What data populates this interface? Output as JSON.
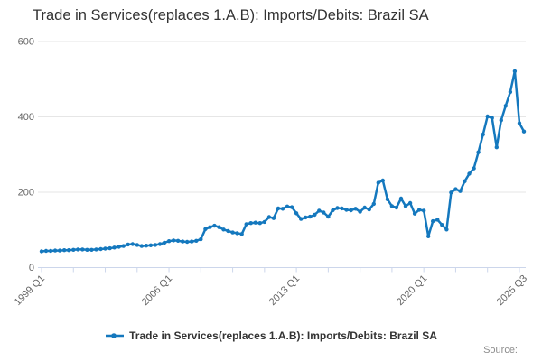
{
  "title": "Trade in Services(replaces 1.A.B): Imports/Debits: Brazil SA",
  "legend": {
    "label": "Trade in Services(replaces 1.A.B): Imports/Debits: Brazil SA"
  },
  "credits": {
    "label": "Source:"
  },
  "colors": {
    "line": "#1478be",
    "grid": "#e6e6e6",
    "axis": "#ccd6eb",
    "tick": "#ccd6eb",
    "axis_text": "#666666",
    "title_text": "#333333",
    "credits_text": "#8c8c8c"
  },
  "chart_data": {
    "type": "line",
    "title": "Trade in Services(replaces 1.A.B): Imports/Debits: Brazil SA",
    "frequency": "quarterly",
    "x_start": "1999 Q1",
    "x_end": "2025 Q3",
    "xlabel": "",
    "ylabel": "",
    "ylim": [
      0,
      600
    ],
    "y_ticks": [
      0,
      200,
      400,
      600
    ],
    "x_tick_labels": [
      {
        "label": "1999 Q1",
        "index": 0
      },
      {
        "label": "2006 Q1",
        "index": 28
      },
      {
        "label": "2013 Q1",
        "index": 56
      },
      {
        "label": "2020 Q1",
        "index": 84
      },
      {
        "label": "2025 Q3",
        "index": 106
      }
    ],
    "x_minor_tick_every": 7,
    "grid": "horizontal",
    "legend_position": "bottom",
    "markers": true,
    "series": [
      {
        "name": "Trade in Services(replaces 1.A.B): Imports/Debits: Brazil SA",
        "color": "#1478be",
        "values": [
          42,
          43,
          43,
          44,
          44,
          45,
          45,
          46,
          47,
          47,
          46,
          46,
          47,
          48,
          49,
          50,
          52,
          54,
          56,
          60,
          61,
          59,
          56,
          57,
          58,
          59,
          61,
          65,
          69,
          71,
          70,
          68,
          67,
          68,
          70,
          74,
          101,
          106,
          110,
          106,
          100,
          96,
          92,
          90,
          88,
          114,
          117,
          118,
          117,
          120,
          133,
          130,
          156,
          155,
          161,
          159,
          143,
          128,
          132,
          134,
          139,
          150,
          145,
          134,
          151,
          157,
          156,
          152,
          151,
          155,
          147,
          158,
          153,
          168,
          224,
          230,
          180,
          162,
          158,
          182,
          162,
          170,
          142,
          152,
          150,
          82,
          122,
          126,
          112,
          100,
          198,
          207,
          202,
          228,
          248,
          262,
          305,
          352,
          400,
          396,
          318,
          390,
          428,
          465,
          520,
          382,
          360
        ]
      }
    ]
  }
}
